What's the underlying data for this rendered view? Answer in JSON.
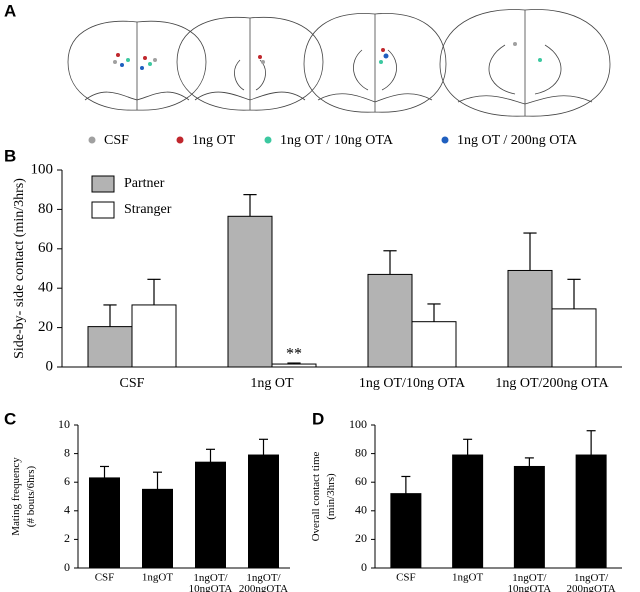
{
  "panel_a": {
    "label": "A",
    "legend": [
      {
        "name": "CSF",
        "color": "#a0a0a0"
      },
      {
        "name": "1ng OT",
        "color": "#c0272d"
      },
      {
        "name": "1ng OT / 10ng OTA",
        "color": "#3cc8a0"
      },
      {
        "name": "1ng OT / 200ng OTA",
        "color": "#1f5fbf"
      }
    ]
  },
  "chart_data": [
    {
      "type": "bar",
      "label": "B",
      "ylabel": [
        "Side-by- side contact  (min/3hrs)"
      ],
      "categories": [
        "CSF",
        "1ng OT",
        "1ng OT/10ng OTA",
        "1ng OT/200ng OTA"
      ],
      "series": [
        {
          "name": "Partner",
          "color": "#b3b3b3",
          "values": [
            20.5,
            76.5,
            47,
            49
          ],
          "errors": [
            11,
            11,
            12,
            19
          ]
        },
        {
          "name": "Stranger",
          "color": "#ffffff",
          "values": [
            31.5,
            1.5,
            23,
            29.5
          ],
          "errors": [
            13,
            0.5,
            9,
            15
          ]
        }
      ],
      "annotations": [
        {
          "text": "**",
          "category": "1ng OT"
        }
      ],
      "ylim": [
        0,
        100
      ],
      "yticks": [
        0,
        20,
        40,
        60,
        80,
        100
      ]
    },
    {
      "type": "bar",
      "label": "C",
      "ylabel": [
        "Mating frequency",
        "(# bouts/6hrs)"
      ],
      "categories": [
        "CSF",
        "1ngOT",
        "1ngOT/10ngOTA",
        "1ngOT/200ngOTA"
      ],
      "series": [
        {
          "color": "#000000",
          "values": [
            6.3,
            5.5,
            7.4,
            7.9
          ],
          "errors": [
            0.8,
            1.2,
            0.9,
            1.1
          ]
        }
      ],
      "ylim": [
        0,
        10
      ],
      "yticks": [
        0,
        2,
        4,
        6,
        8,
        10
      ]
    },
    {
      "type": "bar",
      "label": "D",
      "ylabel": [
        "Overall contact time",
        "(min/3hrs)"
      ],
      "categories": [
        "CSF",
        "1ngOT",
        "1ngOT/10ngOTA",
        "1ngOT/200ngOTA"
      ],
      "series": [
        {
          "color": "#000000",
          "values": [
            52,
            79,
            71,
            79
          ],
          "errors": [
            12,
            11,
            6,
            17
          ]
        }
      ],
      "ylim": [
        0,
        100
      ],
      "yticks": [
        0,
        20,
        40,
        60,
        80,
        100
      ]
    }
  ]
}
